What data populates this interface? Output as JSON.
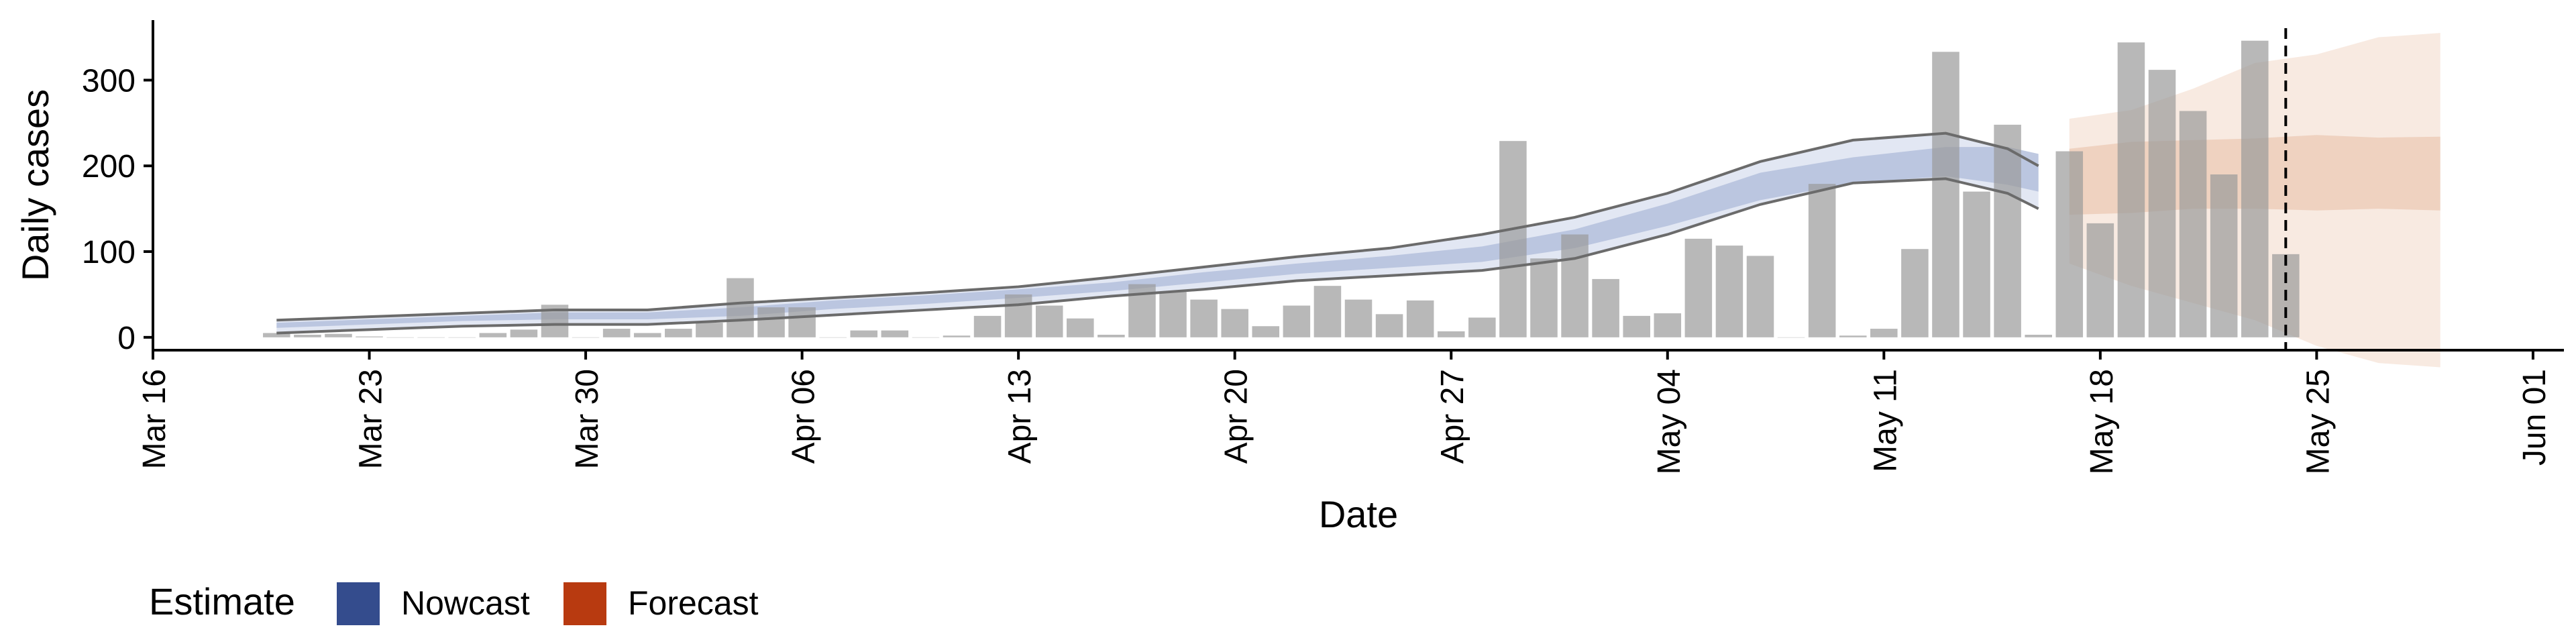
{
  "chart_data": {
    "type": "bar",
    "xlabel": "Date",
    "ylabel": "Daily cases",
    "x_range": [
      "2020-03-16",
      "2020-06-02"
    ],
    "ylim": [
      -15,
      370
    ],
    "x_ticks": [
      {
        "date": "2020-03-16",
        "label": "Mar 16"
      },
      {
        "date": "2020-03-23",
        "label": "Mar 23"
      },
      {
        "date": "2020-03-30",
        "label": "Mar 30"
      },
      {
        "date": "2020-04-06",
        "label": "Apr 06"
      },
      {
        "date": "2020-04-13",
        "label": "Apr 13"
      },
      {
        "date": "2020-04-20",
        "label": "Apr 20"
      },
      {
        "date": "2020-04-27",
        "label": "Apr 27"
      },
      {
        "date": "2020-05-04",
        "label": "May 04"
      },
      {
        "date": "2020-05-11",
        "label": "May 11"
      },
      {
        "date": "2020-05-18",
        "label": "May 18"
      },
      {
        "date": "2020-05-25",
        "label": "May 25"
      },
      {
        "date": "2020-06-01",
        "label": "Jun 01"
      }
    ],
    "y_ticks": [
      0,
      100,
      200,
      300
    ],
    "grid": false,
    "legend": {
      "title": "Estimate",
      "position": "bottom-left",
      "entries": [
        {
          "label": "Nowcast",
          "color": "#344c8d"
        },
        {
          "label": "Forecast",
          "color": "#b83a10"
        }
      ]
    },
    "observed_bars": {
      "color": "#9a9a9a",
      "x": [
        "2020-03-20",
        "2020-03-21",
        "2020-03-22",
        "2020-03-23",
        "2020-03-24",
        "2020-03-25",
        "2020-03-26",
        "2020-03-27",
        "2020-03-28",
        "2020-03-29",
        "2020-03-30",
        "2020-03-31",
        "2020-04-01",
        "2020-04-02",
        "2020-04-03",
        "2020-04-04",
        "2020-04-05",
        "2020-04-06",
        "2020-04-07",
        "2020-04-08",
        "2020-04-09",
        "2020-04-10",
        "2020-04-11",
        "2020-04-12",
        "2020-04-13",
        "2020-04-14",
        "2020-04-15",
        "2020-04-16",
        "2020-04-17",
        "2020-04-18",
        "2020-04-19",
        "2020-04-20",
        "2020-04-21",
        "2020-04-22",
        "2020-04-23",
        "2020-04-24",
        "2020-04-25",
        "2020-04-26",
        "2020-04-27",
        "2020-04-28",
        "2020-04-29",
        "2020-04-30",
        "2020-05-01",
        "2020-05-02",
        "2020-05-03",
        "2020-05-04",
        "2020-05-05",
        "2020-05-06",
        "2020-05-07",
        "2020-05-08",
        "2020-05-09",
        "2020-05-10",
        "2020-05-11",
        "2020-05-12",
        "2020-05-13",
        "2020-05-14",
        "2020-05-15",
        "2020-05-16",
        "2020-05-17",
        "2020-05-18",
        "2020-05-19",
        "2020-05-20",
        "2020-05-21",
        "2020-05-22",
        "2020-05-23",
        "2020-05-24"
      ],
      "values": [
        5,
        3,
        4,
        1,
        0,
        0,
        0,
        5,
        9,
        38,
        0,
        10,
        5,
        10,
        17,
        69,
        35,
        35,
        0,
        8,
        8,
        0,
        2,
        25,
        50,
        37,
        22,
        3,
        62,
        53,
        44,
        33,
        13,
        37,
        60,
        44,
        27,
        43,
        7,
        23,
        229,
        92,
        120,
        68,
        25,
        28,
        115,
        107,
        95,
        0,
        179,
        2,
        10,
        103,
        333,
        170,
        248,
        3,
        217,
        133,
        344,
        312,
        264,
        190,
        346,
        97
      ]
    },
    "nowcast": {
      "x": [
        "2020-03-20",
        "2020-03-23",
        "2020-03-26",
        "2020-03-29",
        "2020-04-01",
        "2020-04-04",
        "2020-04-07",
        "2020-04-10",
        "2020-04-13",
        "2020-04-16",
        "2020-04-19",
        "2020-04-22",
        "2020-04-25",
        "2020-04-28",
        "2020-05-01",
        "2020-05-04",
        "2020-05-07",
        "2020-05-10",
        "2020-05-13",
        "2020-05-15",
        "2020-05-16"
      ],
      "median": [
        14,
        18,
        22,
        25,
        25,
        30,
        38,
        44,
        51,
        59,
        70,
        80,
        88,
        97,
        115,
        143,
        176,
        195,
        205,
        200,
        192
      ],
      "lower_50": [
        11,
        15,
        19,
        21,
        21,
        25,
        33,
        39,
        46,
        54,
        64,
        74,
        81,
        88,
        104,
        130,
        160,
        180,
        188,
        178,
        170
      ],
      "upper_50": [
        17,
        21,
        25,
        29,
        29,
        35,
        43,
        49,
        56,
        64,
        76,
        86,
        95,
        106,
        126,
        156,
        192,
        210,
        222,
        222,
        214
      ],
      "lower_90": [
        5,
        9,
        13,
        15,
        15,
        20,
        26,
        32,
        38,
        48,
        56,
        66,
        72,
        78,
        92,
        120,
        155,
        180,
        185,
        168,
        150
      ],
      "upper_90": [
        20,
        24,
        28,
        32,
        32,
        40,
        46,
        52,
        59,
        70,
        82,
        94,
        104,
        120,
        140,
        168,
        205,
        230,
        238,
        220,
        200
      ]
    },
    "forecast": {
      "x": [
        "2020-05-17",
        "2020-05-19",
        "2020-05-21",
        "2020-05-23",
        "2020-05-25",
        "2020-05-27",
        "2020-05-29"
      ],
      "median": [
        180,
        190,
        195,
        198,
        200,
        202,
        200
      ],
      "lower_50": [
        143,
        145,
        150,
        150,
        148,
        150,
        148
      ],
      "upper_50": [
        220,
        228,
        230,
        232,
        236,
        233,
        234
      ],
      "lower_90": [
        86,
        60,
        40,
        20,
        -10,
        -30,
        -35
      ],
      "upper_90": [
        255,
        265,
        290,
        320,
        330,
        350,
        355
      ]
    },
    "forecast_start": "2020-05-24"
  }
}
